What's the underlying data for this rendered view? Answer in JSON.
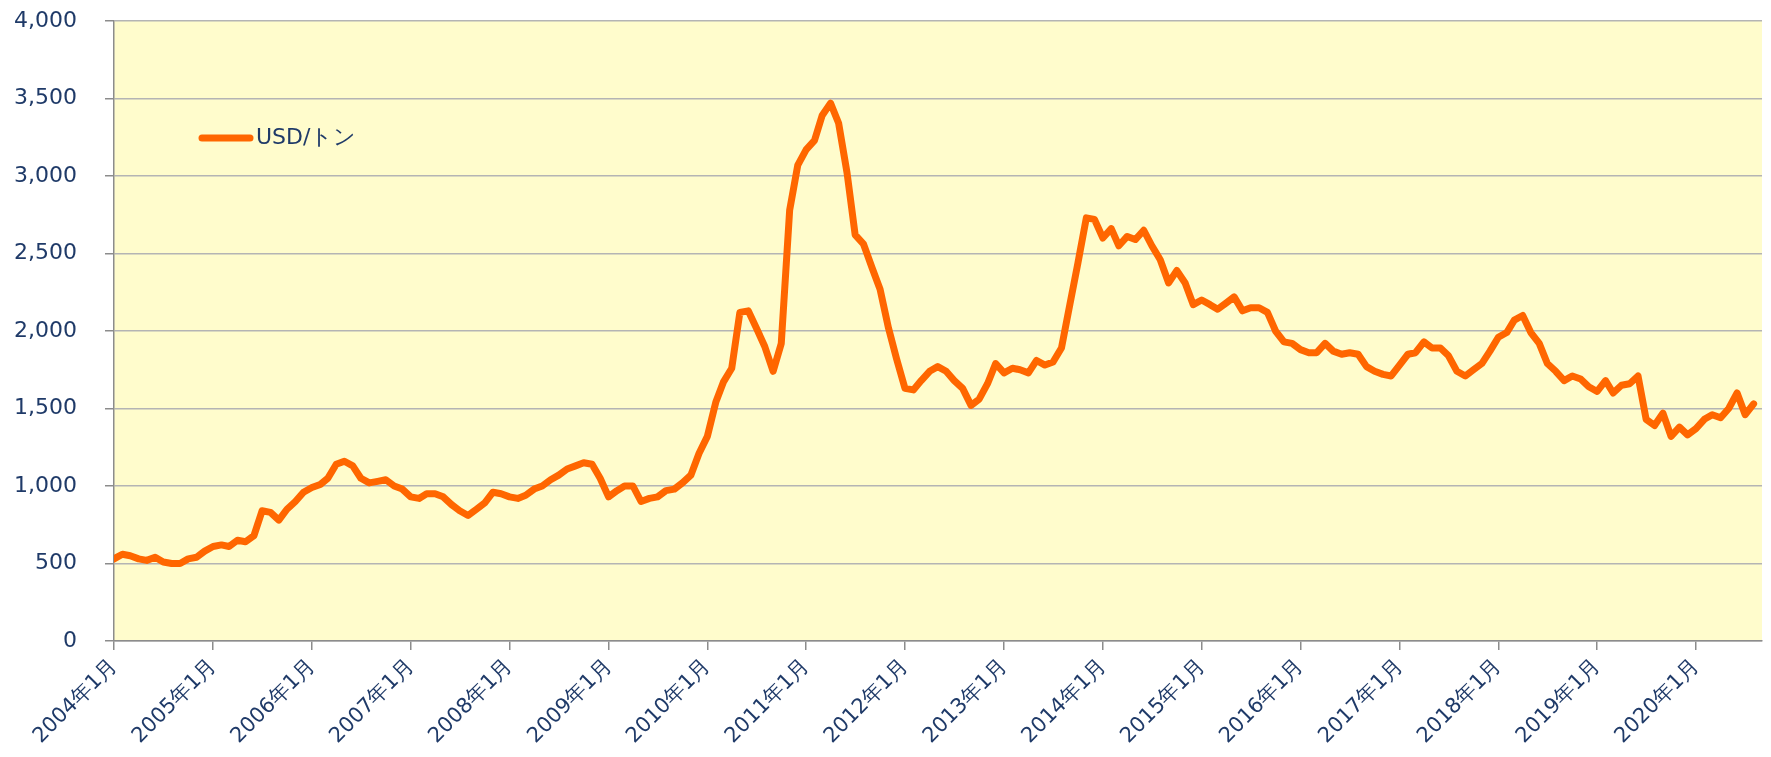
{
  "chart_data": {
    "type": "line",
    "x": [
      "2004-01",
      "2004-02",
      "2004-03",
      "2004-04",
      "2004-05",
      "2004-06",
      "2004-07",
      "2004-08",
      "2004-09",
      "2004-10",
      "2004-11",
      "2004-12",
      "2005-01",
      "2005-02",
      "2005-03",
      "2005-04",
      "2005-05",
      "2005-06",
      "2005-07",
      "2005-08",
      "2005-09",
      "2005-10",
      "2005-11",
      "2005-12",
      "2006-01",
      "2006-02",
      "2006-03",
      "2006-04",
      "2006-05",
      "2006-06",
      "2006-07",
      "2006-08",
      "2006-09",
      "2006-10",
      "2006-11",
      "2006-12",
      "2007-01",
      "2007-02",
      "2007-03",
      "2007-04",
      "2007-05",
      "2007-06",
      "2007-07",
      "2007-08",
      "2007-09",
      "2007-10",
      "2007-11",
      "2007-12",
      "2008-01",
      "2008-02",
      "2008-03",
      "2008-04",
      "2008-05",
      "2008-06",
      "2008-07",
      "2008-08",
      "2008-09",
      "2008-10",
      "2008-11",
      "2008-12",
      "2009-01",
      "2009-02",
      "2009-03",
      "2009-04",
      "2009-05",
      "2009-06",
      "2009-07",
      "2009-08",
      "2009-09",
      "2009-10",
      "2009-11",
      "2009-12",
      "2010-01",
      "2010-02",
      "2010-03",
      "2010-04",
      "2010-05",
      "2010-06",
      "2010-07",
      "2010-08",
      "2010-09",
      "2010-10",
      "2010-11",
      "2010-12",
      "2011-01",
      "2011-02",
      "2011-03",
      "2011-04",
      "2011-05",
      "2011-06",
      "2011-07",
      "2011-08",
      "2011-09",
      "2011-10",
      "2011-11",
      "2011-12",
      "2012-01",
      "2012-02",
      "2012-03",
      "2012-04",
      "2012-05",
      "2012-06",
      "2012-07",
      "2012-08",
      "2012-09",
      "2012-10",
      "2012-11",
      "2012-12",
      "2013-01",
      "2013-02",
      "2013-03",
      "2013-04",
      "2013-05",
      "2013-06",
      "2013-07",
      "2013-08",
      "2013-09",
      "2013-10",
      "2013-11",
      "2013-12",
      "2014-01",
      "2014-02",
      "2014-03",
      "2014-04",
      "2014-05",
      "2014-06",
      "2014-07",
      "2014-08",
      "2014-09",
      "2014-10",
      "2014-11",
      "2014-12",
      "2015-01",
      "2015-02",
      "2015-03",
      "2015-04",
      "2015-05",
      "2015-06",
      "2015-07",
      "2015-08",
      "2015-09",
      "2015-10",
      "2015-11",
      "2015-12",
      "2016-01",
      "2016-02",
      "2016-03",
      "2016-04",
      "2016-05",
      "2016-06",
      "2016-07",
      "2016-08",
      "2016-09",
      "2016-10",
      "2016-11",
      "2016-12",
      "2017-01",
      "2017-02",
      "2017-03",
      "2017-04",
      "2017-05",
      "2017-06",
      "2017-07",
      "2017-08",
      "2017-09",
      "2017-10",
      "2017-11",
      "2017-12",
      "2018-01",
      "2018-02",
      "2018-03",
      "2018-04",
      "2018-05",
      "2018-06",
      "2018-07",
      "2018-08",
      "2018-09",
      "2018-10",
      "2018-11",
      "2018-12",
      "2019-01",
      "2019-02",
      "2019-03",
      "2019-04",
      "2019-05",
      "2019-06",
      "2019-07",
      "2019-08",
      "2019-09",
      "2019-10",
      "2019-11",
      "2019-12",
      "2020-01",
      "2020-02",
      "2020-03",
      "2020-04",
      "2020-05",
      "2020-06",
      "2020-07",
      "2020-08"
    ],
    "series": [
      {
        "name": "USD/トン",
        "color": "#ff6600",
        "values": [
          530,
          560,
          550,
          530,
          520,
          540,
          510,
          500,
          500,
          530,
          540,
          580,
          610,
          620,
          610,
          650,
          640,
          680,
          840,
          830,
          780,
          850,
          900,
          960,
          990,
          1010,
          1050,
          1140,
          1160,
          1130,
          1050,
          1020,
          1030,
          1040,
          1000,
          980,
          930,
          920,
          950,
          950,
          930,
          880,
          840,
          810,
          850,
          890,
          960,
          950,
          930,
          920,
          940,
          980,
          1000,
          1040,
          1070,
          1110,
          1130,
          1150,
          1140,
          1050,
          930,
          970,
          1000,
          1000,
          900,
          920,
          930,
          970,
          980,
          1020,
          1070,
          1210,
          1320,
          1540,
          1670,
          1760,
          2120,
          2130,
          2020,
          1900,
          1740,
          1920,
          2780,
          3070,
          3170,
          3230,
          3390,
          3470,
          3340,
          3020,
          2620,
          2560,
          2410,
          2270,
          2020,
          1820,
          1630,
          1620,
          1680,
          1740,
          1770,
          1740,
          1680,
          1630,
          1520,
          1560,
          1660,
          1790,
          1730,
          1760,
          1750,
          1730,
          1810,
          1780,
          1800,
          1890,
          2170,
          2440,
          2730,
          2720,
          2600,
          2660,
          2550,
          2610,
          2590,
          2650,
          2550,
          2460,
          2310,
          2390,
          2310,
          2170,
          2200,
          2170,
          2140,
          2180,
          2220,
          2130,
          2150,
          2150,
          2120,
          2000,
          1930,
          1920,
          1880,
          1860,
          1860,
          1920,
          1870,
          1850,
          1860,
          1850,
          1770,
          1740,
          1720,
          1710,
          1780,
          1850,
          1860,
          1930,
          1890,
          1890,
          1840,
          1740,
          1710,
          1750,
          1790,
          1870,
          1960,
          1990,
          2070,
          2100,
          1990,
          1920,
          1790,
          1740,
          1680,
          1710,
          1690,
          1640,
          1610,
          1680,
          1600,
          1650,
          1660,
          1710,
          1430,
          1390,
          1470,
          1320,
          1380,
          1330,
          1370,
          1430,
          1460,
          1440,
          1500,
          1600,
          1460,
          1530
        ]
      }
    ],
    "xlim": [
      "2004-01",
      "2020-09"
    ],
    "xticks": [
      {
        "value": "2004-01",
        "label": "2004年1月"
      },
      {
        "value": "2005-01",
        "label": "2005年1月"
      },
      {
        "value": "2006-01",
        "label": "2006年1月"
      },
      {
        "value": "2007-01",
        "label": "2007年1月"
      },
      {
        "value": "2008-01",
        "label": "2008年1月"
      },
      {
        "value": "2009-01",
        "label": "2009年1月"
      },
      {
        "value": "2010-01",
        "label": "2010年1月"
      },
      {
        "value": "2011-01",
        "label": "2011年1月"
      },
      {
        "value": "2012-01",
        "label": "2012年1月"
      },
      {
        "value": "2013-01",
        "label": "2013年1月"
      },
      {
        "value": "2014-01",
        "label": "2014年1月"
      },
      {
        "value": "2015-01",
        "label": "2015年1月"
      },
      {
        "value": "2016-01",
        "label": "2016年1月"
      },
      {
        "value": "2017-01",
        "label": "2017年1月"
      },
      {
        "value": "2018-01",
        "label": "2018年1月"
      },
      {
        "value": "2019-01",
        "label": "2019年1月"
      },
      {
        "value": "2020-01",
        "label": "2020年1月"
      }
    ],
    "ylim": [
      0,
      4000
    ],
    "yticks": [
      0,
      500,
      {
        "value": 1000,
        "label": "1,000"
      },
      {
        "value": 1500,
        "label": "1,500"
      },
      {
        "value": 2000,
        "label": "2,000"
      },
      {
        "value": 2500,
        "label": "2,500"
      },
      {
        "value": 3000,
        "label": "3,000"
      },
      {
        "value": 3500,
        "label": "3,500"
      },
      {
        "value": 4000,
        "label": "4,000"
      }
    ],
    "grid": "y",
    "legend": "top left"
  }
}
